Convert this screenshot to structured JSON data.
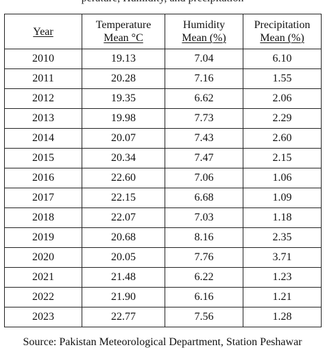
{
  "caption_partial": "perature, Humidity, and precipitation",
  "table": {
    "headers": {
      "year": "Year",
      "temperature_line1": "Temperature",
      "temperature_line2": "Mean °C",
      "humidity_line1": "Humidity",
      "humidity_line2": "Mean (%)",
      "precipitation_line1": "Precipitation",
      "precipitation_line2": "Mean (%)"
    },
    "rows": [
      {
        "year": "2010",
        "temperature": "19.13",
        "humidity": "7.04",
        "precipitation": "6.10"
      },
      {
        "year": "2011",
        "temperature": "20.28",
        "humidity": "7.16",
        "precipitation": "1.55"
      },
      {
        "year": "2012",
        "temperature": "19.35",
        "humidity": "6.62",
        "precipitation": "2.06"
      },
      {
        "year": "2013",
        "temperature": "19.98",
        "humidity": "7.73",
        "precipitation": "2.29"
      },
      {
        "year": "2014",
        "temperature": "20.07",
        "humidity": "7.43",
        "precipitation": "2.60"
      },
      {
        "year": "2015",
        "temperature": "20.34",
        "humidity": "7.47",
        "precipitation": "2.15"
      },
      {
        "year": "2016",
        "temperature": "22.60",
        "humidity": "7.06",
        "precipitation": "1.06"
      },
      {
        "year": "2017",
        "temperature": "22.15",
        "humidity": "6.68",
        "precipitation": "1.09"
      },
      {
        "year": "2018",
        "temperature": "22.07",
        "humidity": "7.03",
        "precipitation": "1.18"
      },
      {
        "year": "2019",
        "temperature": "20.68",
        "humidity": "8.16",
        "precipitation": "2.35"
      },
      {
        "year": "2020",
        "temperature": "20.05",
        "humidity": "7.76",
        "precipitation": "3.71"
      },
      {
        "year": "2021",
        "temperature": "21.48",
        "humidity": "6.22",
        "precipitation": "1.23"
      },
      {
        "year": "2022",
        "temperature": "21.90",
        "humidity": "6.16",
        "precipitation": "1.21"
      },
      {
        "year": "2023",
        "temperature": "22.77",
        "humidity": "7.56",
        "precipitation": "1.28"
      }
    ]
  },
  "source": "Source: Pakistan Meteorological Department, Station Peshawar"
}
